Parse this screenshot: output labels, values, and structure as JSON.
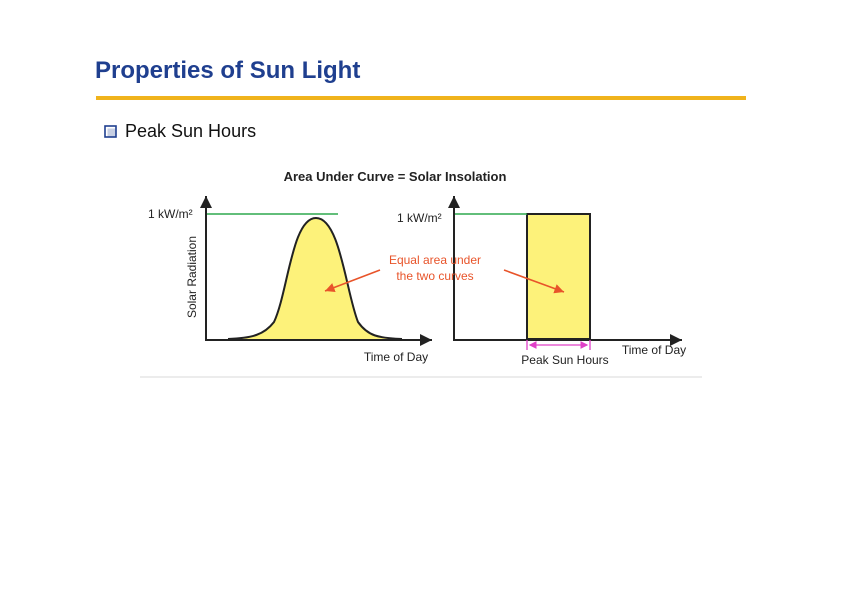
{
  "slide": {
    "title": "Properties of Sun Light",
    "bullet": "Peak Sun Hours"
  },
  "figure": {
    "heading": "Area Under Curve = Solar Insolation",
    "left_plot": {
      "y_tick_label": "1 kW/m²",
      "y_axis_label": "Solar Radiation",
      "x_axis_label": "Time of Day"
    },
    "right_plot": {
      "y_tick_label": "1 kW/m²",
      "x_axis_label": "Time of Day",
      "span_label": "Peak Sun Hours"
    },
    "annotation_line1": "Equal area under",
    "annotation_line2": "the two curves"
  },
  "colors": {
    "title": "#1f3f8f",
    "rule": "#f0b31c",
    "fill": "#fdf27a",
    "peak_line": "#2fa84f",
    "arrow": "#e8542a",
    "span": "#e040c8"
  }
}
